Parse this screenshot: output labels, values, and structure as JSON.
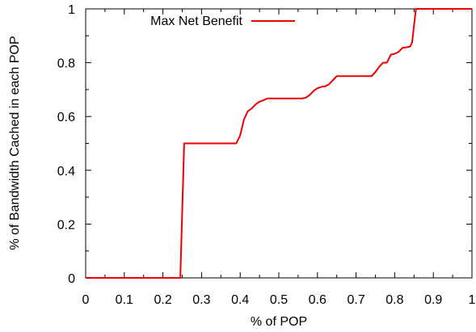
{
  "chart_data": {
    "type": "line",
    "title": "",
    "xlabel": "% of POP",
    "ylabel": "% of Bandwidth Cached in each POP",
    "xlim": [
      0,
      1
    ],
    "ylim": [
      0,
      1
    ],
    "xticks": [
      0,
      0.1,
      0.2,
      0.3,
      0.4,
      0.5,
      0.6,
      0.7,
      0.8,
      0.9,
      1
    ],
    "yticks": [
      0,
      0.2,
      0.4,
      0.6,
      0.8,
      1
    ],
    "xtick_labels": [
      "0",
      "0.1",
      "0.2",
      "0.3",
      "0.4",
      "0.5",
      "0.6",
      "0.7",
      "0.8",
      "0.9",
      "1"
    ],
    "ytick_labels": [
      "0",
      "0.2",
      "0.4",
      "0.6",
      "0.8",
      "1"
    ],
    "grid": false,
    "legend_position": "top-left",
    "series": [
      {
        "name": "Max Net Benefit",
        "color": "#ee0000",
        "x": [
          0,
          0.245,
          0.255,
          0.26,
          0.39,
          0.4,
          0.41,
          0.42,
          0.43,
          0.44,
          0.45,
          0.46,
          0.47,
          0.48,
          0.49,
          0.5,
          0.51,
          0.52,
          0.53,
          0.54,
          0.55,
          0.56,
          0.57,
          0.58,
          0.59,
          0.6,
          0.61,
          0.62,
          0.63,
          0.64,
          0.65,
          0.66,
          0.67,
          0.68,
          0.69,
          0.7,
          0.71,
          0.72,
          0.73,
          0.74,
          0.75,
          0.76,
          0.77,
          0.78,
          0.79,
          0.8,
          0.81,
          0.82,
          0.83,
          0.84,
          0.845,
          0.855,
          1.0
        ],
        "y": [
          0,
          0,
          0.5,
          0.5,
          0.5,
          0.53,
          0.59,
          0.62,
          0.63,
          0.645,
          0.655,
          0.66,
          0.667,
          0.667,
          0.667,
          0.667,
          0.667,
          0.667,
          0.667,
          0.667,
          0.667,
          0.667,
          0.67,
          0.68,
          0.695,
          0.705,
          0.71,
          0.712,
          0.72,
          0.735,
          0.75,
          0.75,
          0.75,
          0.75,
          0.75,
          0.75,
          0.75,
          0.75,
          0.75,
          0.75,
          0.765,
          0.785,
          0.8,
          0.8,
          0.83,
          0.833,
          0.84,
          0.855,
          0.857,
          0.86,
          0.875,
          1.0,
          1.0
        ]
      }
    ]
  }
}
